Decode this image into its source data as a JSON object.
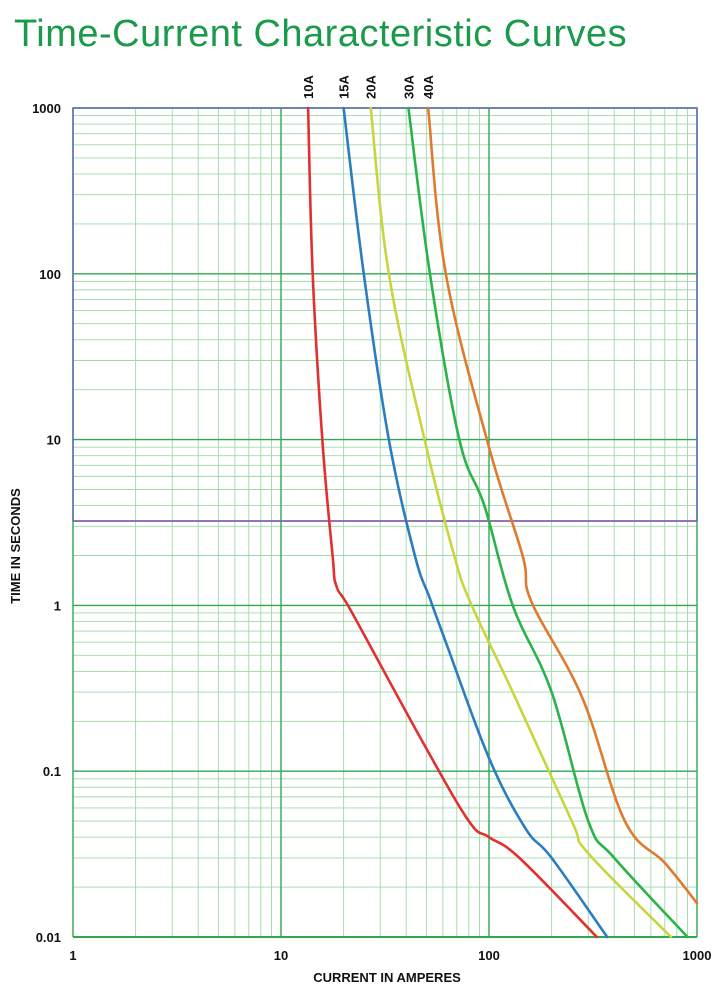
{
  "title": "Time-Current Characteristic Curves",
  "colors": {
    "title": "#1a9a4a",
    "grid_major": "#2fa84f",
    "grid_minor": "#9fd9a8",
    "frame": "#5b6fb0",
    "highlight": "#8e5fa8"
  },
  "chart_data": {
    "type": "line",
    "x_scale": "log",
    "y_scale": "log",
    "xlim": [
      1,
      1000
    ],
    "ylim": [
      0.01,
      1000
    ],
    "xlabel": "CURRENT IN AMPERES",
    "ylabel": "TIME IN SECONDS",
    "x_ticks": [
      "1",
      "10",
      "100",
      "1000"
    ],
    "y_ticks": [
      "0.01",
      "0.1",
      "1",
      "10",
      "100",
      "1000"
    ],
    "grid": true,
    "legend": "series labels along top edge",
    "series": [
      {
        "name": "10A",
        "color": "#e03030",
        "points": [
          [
            13.5,
            1000
          ],
          [
            14.2,
            100
          ],
          [
            15.8,
            10
          ],
          [
            17.7,
            2
          ],
          [
            18.5,
            1.3
          ],
          [
            22,
            0.9
          ],
          [
            48,
            0.15
          ],
          [
            80,
            0.05
          ],
          [
            100,
            0.04
          ],
          [
            140,
            0.03
          ],
          [
            330,
            0.01
          ]
        ]
      },
      {
        "name": "15A",
        "color": "#2c7dbf",
        "points": [
          [
            20,
            1000
          ],
          [
            25,
            100
          ],
          [
            33,
            10
          ],
          [
            44,
            2
          ],
          [
            52,
            1.1
          ],
          [
            62,
            0.6
          ],
          [
            100,
            0.12
          ],
          [
            150,
            0.045
          ],
          [
            200,
            0.03
          ],
          [
            370,
            0.01
          ]
        ]
      },
      {
        "name": "20A",
        "color": "#c8d53e",
        "points": [
          [
            27,
            1000
          ],
          [
            33,
            100
          ],
          [
            49,
            10
          ],
          [
            68,
            2
          ],
          [
            82,
            1.02
          ],
          [
            130,
            0.3
          ],
          [
            250,
            0.05
          ],
          [
            300,
            0.032
          ],
          [
            750,
            0.01
          ]
        ]
      },
      {
        "name": "30A",
        "color": "#2ab34a",
        "points": [
          [
            41,
            1000
          ],
          [
            52,
            100
          ],
          [
            72,
            10
          ],
          [
            95,
            4
          ],
          [
            130,
            1.0
          ],
          [
            200,
            0.3
          ],
          [
            300,
            0.05
          ],
          [
            400,
            0.03
          ],
          [
            900,
            0.01
          ]
        ]
      },
      {
        "name": "40A",
        "color": "#e07a2e",
        "points": [
          [
            51,
            1000
          ],
          [
            62,
            100
          ],
          [
            100,
            9
          ],
          [
            145,
            2
          ],
          [
            160,
            1.05
          ],
          [
            280,
            0.28
          ],
          [
            450,
            0.05
          ],
          [
            700,
            0.028
          ],
          [
            1000,
            0.016
          ]
        ]
      }
    ]
  }
}
